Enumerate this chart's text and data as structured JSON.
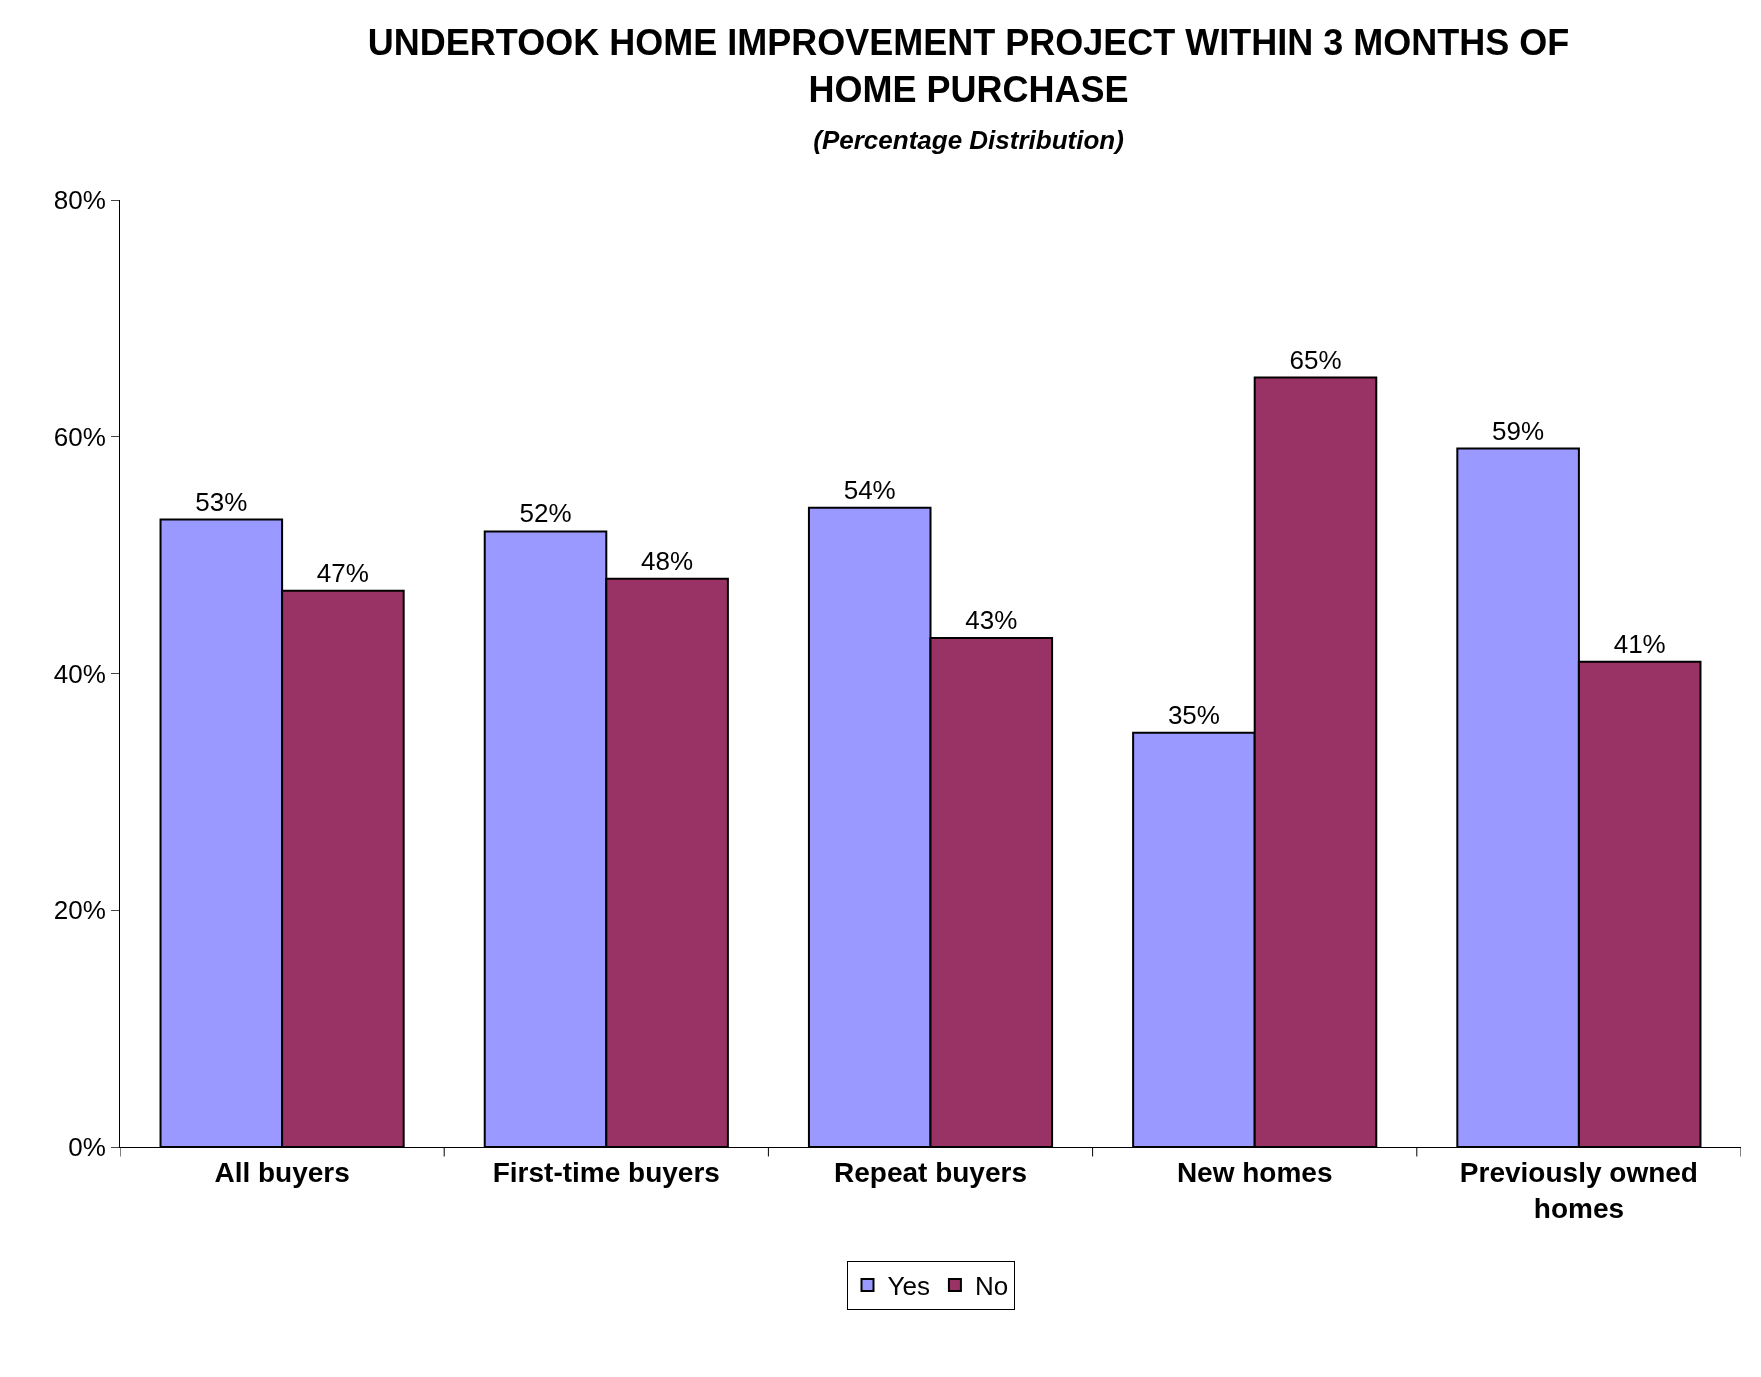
{
  "chart_data": {
    "type": "bar",
    "title": "UNDERTOOK HOME IMPROVEMENT PROJECT WITHIN 3 MONTHS OF HOME PURCHASE",
    "subtitle": "(Percentage Distribution)",
    "categories": [
      "All buyers",
      "First-time buyers",
      "Repeat buyers",
      "New homes",
      "Previously owned homes"
    ],
    "series": [
      {
        "name": "Yes",
        "color": "#9999ff",
        "values": [
          53,
          52,
          54,
          35,
          59
        ],
        "value_labels": [
          "53%",
          "52%",
          "54%",
          "35%",
          "59%"
        ]
      },
      {
        "name": "No",
        "color": "#993366",
        "values": [
          47,
          48,
          43,
          65,
          41
        ],
        "value_labels": [
          "47%",
          "48%",
          "43%",
          "65%",
          "41%"
        ]
      }
    ],
    "ylim": [
      0,
      80
    ],
    "yticks": [
      {
        "value": 0,
        "label": "0%"
      },
      {
        "value": 20,
        "label": "20%"
      },
      {
        "value": 40,
        "label": "40%"
      },
      {
        "value": 60,
        "label": "60%"
      },
      {
        "value": 80,
        "label": "80%"
      }
    ],
    "grid": false,
    "legend": "bottom"
  }
}
